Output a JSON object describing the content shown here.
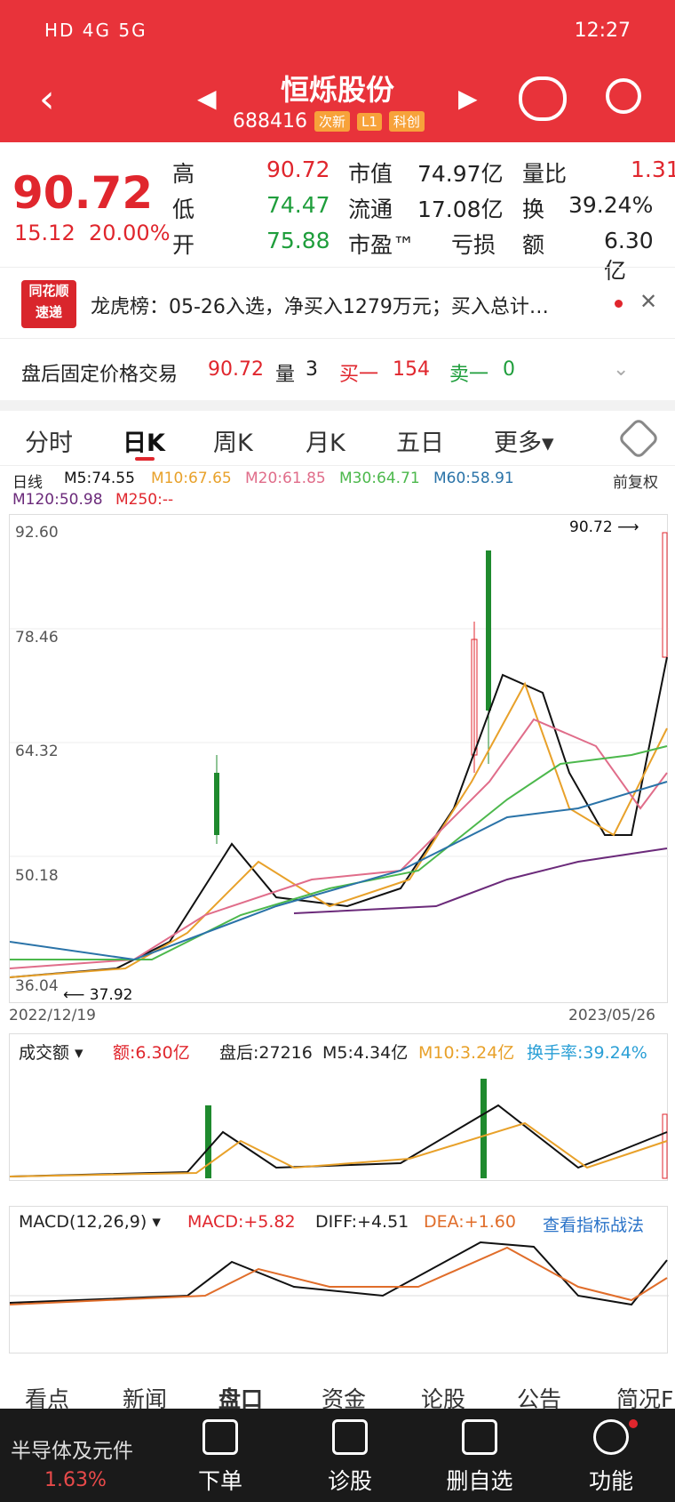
{
  "status_bar": {
    "left": "HD 4G 5G",
    "time": "12:27"
  },
  "header": {
    "title": "恒烁股份",
    "code": "688416",
    "tag1": "次新",
    "tag2": "L1",
    "tag3": "科创"
  },
  "quote": {
    "price": "90.72",
    "change": "15.12",
    "change_pct": "20.00%",
    "high_label": "高",
    "high": "90.72",
    "low_label": "低",
    "low": "74.47",
    "open_label": "开",
    "open": "75.88",
    "mcap_label": "市值",
    "mcap": "74.97亿",
    "float_label": "流通",
    "float": "17.08亿",
    "pe_label": "市盈™",
    "pe": "亏损",
    "vr_label": "量比",
    "vr": "1.31",
    "turn_label": "换",
    "turn": "39.24%",
    "amt_label": "额",
    "amt": "6.30亿"
  },
  "lhb": {
    "logo1": "同花顺",
    "logo2": "速递",
    "text": "龙虎榜：05-26入选，净买入1279万元；买入总计…"
  },
  "fixed_trade": {
    "label": "盘后固定价格交易",
    "price": "90.72",
    "vol_label": "量",
    "vol": "3",
    "buy_label": "买一",
    "buy": "154",
    "sell_label": "卖一",
    "sell": "0"
  },
  "tabs": [
    "分时",
    "日K",
    "周K",
    "月K",
    "五日",
    "更多"
  ],
  "ma": {
    "period": "日线",
    "m5": "M5:74.55",
    "m10": "M10:67.65",
    "m20": "M20:61.85",
    "m30": "M30:64.71",
    "m60": "M60:58.91",
    "m120": "M120:50.98",
    "m250": "M250:--",
    "adj": "前复权"
  },
  "kchart": {
    "y_labels": [
      "92.60",
      "78.46",
      "64.32",
      "50.18",
      "36.04"
    ],
    "date_start": "2022/12/19",
    "date_end": "2023/05/26",
    "high_mark": "90.72",
    "low_mark": "37.92"
  },
  "volume": {
    "label": "成交额",
    "amt": "额:6.30亿",
    "after": "盘后:27216",
    "m5": "M5:4.34亿",
    "m10": "M10:3.24亿",
    "turn": "换手率:39.24%"
  },
  "macd": {
    "label": "MACD(12,26,9)",
    "macd": "MACD:+5.82",
    "diff": "DIFF:+4.51",
    "dea": "DEA:+1.60",
    "link": "查看指标战法"
  },
  "bottom_tabs": [
    "看点",
    "新闻",
    "盘口",
    "资金",
    "论股",
    "公告",
    "简况F"
  ],
  "bottom_bar": {
    "sector": "半导体及元件",
    "pct": "1.63%",
    "b1": "下单",
    "b2": "诊股",
    "b3": "删自选",
    "b4": "功能"
  }
}
